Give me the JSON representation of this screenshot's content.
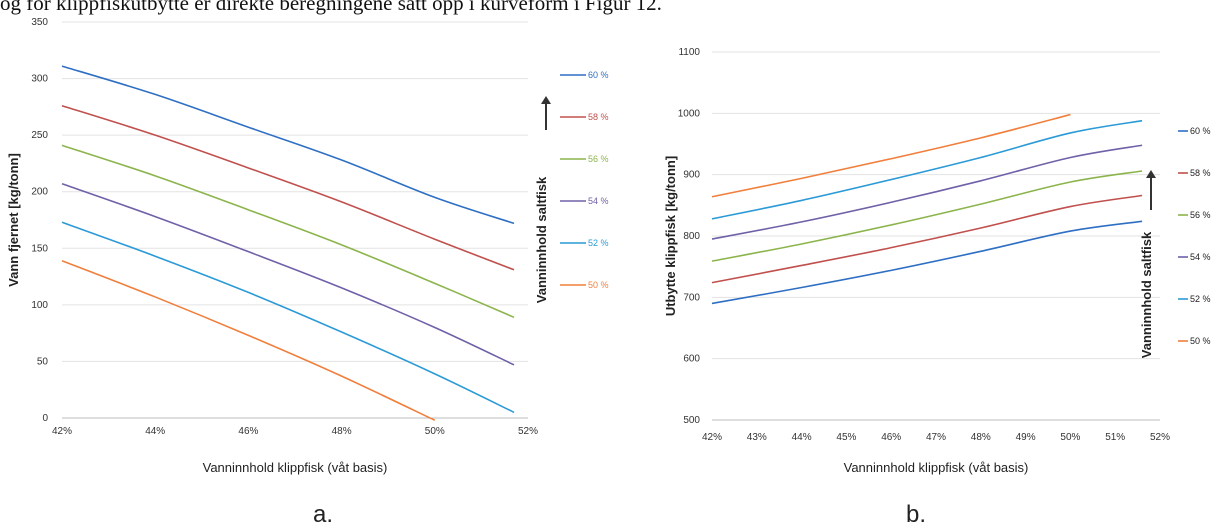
{
  "header_text": "og for klippfiskutbytte er direkte beregningene satt opp i kurveform i Figur 12.",
  "chart_data": [
    {
      "panel": "a.",
      "type": "line",
      "xlabel": "Vanninnhold klippfisk (våt basis)",
      "ylabel": "Vann fjernet [kg/tonn]",
      "xlim": [
        42,
        52
      ],
      "ylim": [
        0,
        350
      ],
      "x_ticks": [
        "42%",
        "44%",
        "46%",
        "48%",
        "50%",
        "52%"
      ],
      "y_ticks": [
        "0",
        "50",
        "100",
        "150",
        "200",
        "250",
        "300",
        "350"
      ],
      "legend_title": "Vanninnhold saltfisk",
      "series": [
        {
          "name": "60 %",
          "color": "#2e6fc4",
          "x": [
            42,
            44,
            46,
            48,
            50,
            51.7
          ],
          "y": [
            311,
            286,
            257,
            228,
            195,
            172
          ]
        },
        {
          "name": "58 %",
          "color": "#c0504d",
          "x": [
            42,
            44,
            46,
            48,
            50,
            51.7
          ],
          "y": [
            276,
            250,
            221,
            191,
            158,
            131
          ]
        },
        {
          "name": "56 %",
          "color": "#8cb44c",
          "x": [
            42,
            44,
            46,
            48,
            50,
            51.7
          ],
          "y": [
            241,
            214,
            184,
            153,
            119,
            89
          ]
        },
        {
          "name": "54 %",
          "color": "#7060a8",
          "x": [
            42,
            44,
            46,
            48,
            50,
            51.7
          ],
          "y": [
            207,
            178,
            147,
            115,
            80,
            47
          ]
        },
        {
          "name": "52 %",
          "color": "#2b9ad6",
          "x": [
            42,
            44,
            46,
            48,
            50,
            51.7
          ],
          "y": [
            173,
            143,
            111,
            76,
            39,
            5
          ]
        },
        {
          "name": "50 %",
          "color": "#f07f3c",
          "x": [
            42,
            44,
            46,
            48,
            50
          ],
          "y": [
            139,
            107,
            73,
            37,
            -2
          ]
        }
      ]
    },
    {
      "panel": "b.",
      "type": "line",
      "xlabel": "Vanninnhold klippfisk (våt basis)",
      "ylabel": "Utbytte klippfisk [kg/tonn]",
      "xlim": [
        42,
        52
      ],
      "ylim": [
        500,
        1100
      ],
      "x_ticks": [
        "42%",
        "43%",
        "44%",
        "45%",
        "46%",
        "47%",
        "48%",
        "49%",
        "50%",
        "51%",
        "52%"
      ],
      "y_ticks": [
        "500",
        "600",
        "700",
        "800",
        "900",
        "1000",
        "1100"
      ],
      "legend_title": "Vanninnhold saltfisk",
      "series": [
        {
          "name": "60 %",
          "color": "#2e6fc4",
          "x": [
            42,
            44,
            46,
            48,
            50,
            51.6
          ],
          "y": [
            690,
            716,
            744,
            775,
            808,
            824
          ]
        },
        {
          "name": "58 %",
          "color": "#c0504d",
          "x": [
            42,
            44,
            46,
            48,
            50,
            51.6
          ],
          "y": [
            724,
            752,
            781,
            813,
            848,
            866
          ]
        },
        {
          "name": "56 %",
          "color": "#8cb44c",
          "x": [
            42,
            44,
            46,
            48,
            50,
            51.6
          ],
          "y": [
            759,
            787,
            818,
            852,
            888,
            906
          ]
        },
        {
          "name": "54 %",
          "color": "#7060a8",
          "x": [
            42,
            44,
            46,
            48,
            50,
            51.6
          ],
          "y": [
            795,
            823,
            855,
            890,
            928,
            948
          ]
        },
        {
          "name": "52 %",
          "color": "#2b9ad6",
          "x": [
            42,
            44,
            46,
            48,
            50,
            51.6
          ],
          "y": [
            828,
            858,
            892,
            928,
            968,
            988
          ]
        },
        {
          "name": "50 %",
          "color": "#f07f3c",
          "x": [
            42,
            44,
            46,
            48,
            50
          ],
          "y": [
            864,
            894,
            926,
            960,
            998
          ]
        }
      ]
    }
  ]
}
